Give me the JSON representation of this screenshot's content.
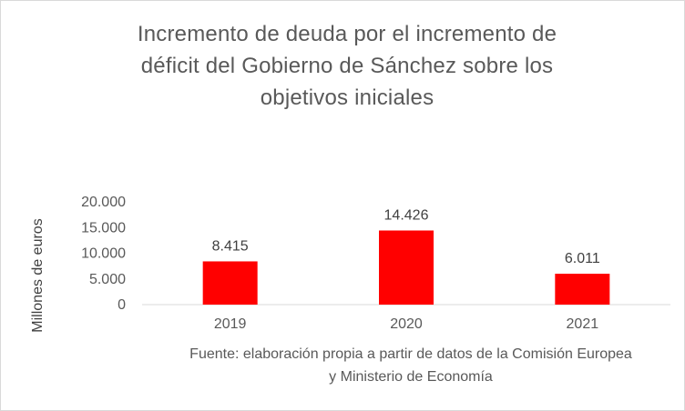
{
  "chart_data": {
    "type": "bar",
    "title_lines": [
      "Incremento de deuda por el incremento de",
      "déficit del Gobierno de Sánchez sobre los",
      "objetivos iniciales"
    ],
    "categories": [
      "2019",
      "2020",
      "2021"
    ],
    "values": [
      8415,
      14426,
      6011
    ],
    "data_labels": [
      "8.415",
      "14.426",
      "6.011"
    ],
    "ylabel": "Millones de euros",
    "xlabel": "",
    "ylim": [
      0,
      20000
    ],
    "yticks": [
      0,
      5000,
      10000,
      15000,
      20000
    ],
    "ytick_labels": [
      "0",
      "5.000",
      "10.000",
      "15.000",
      "20.000"
    ],
    "grid": false,
    "legend": "none",
    "bar_color": "#ff0000",
    "source_lines": [
      "Fuente: elaboración propia a partir de datos de la Comisión Europea",
      "y Ministerio de Economía"
    ]
  }
}
